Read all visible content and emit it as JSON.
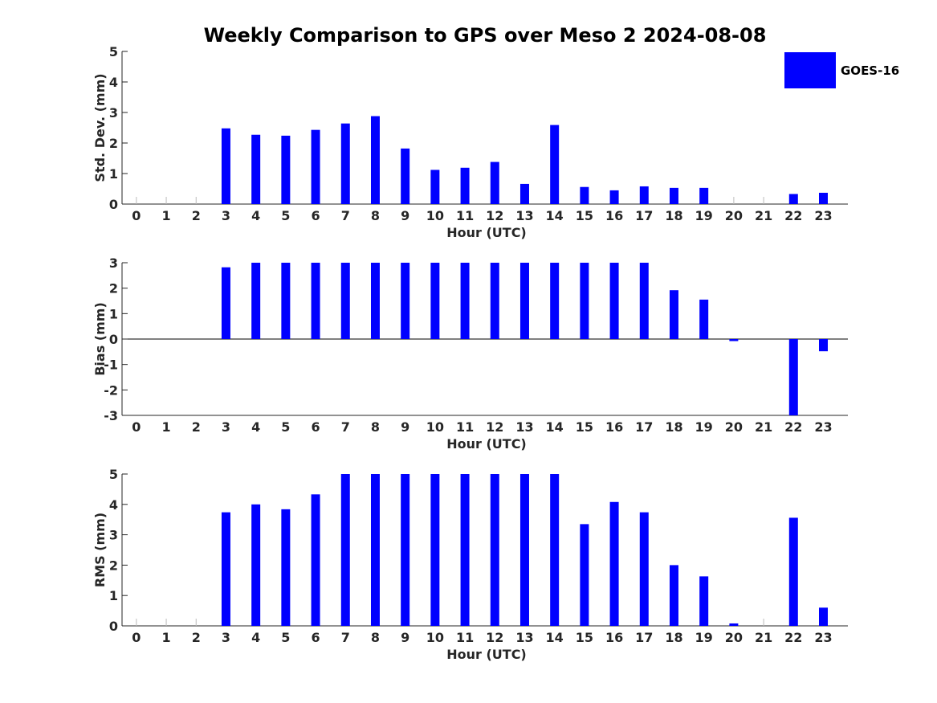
{
  "title": "Weekly Comparison to GPS over Meso 2 2024-08-08",
  "legend": {
    "label": "GOES-16",
    "color": "#0000ff",
    "placement": "top-right"
  },
  "chart_data": [
    {
      "type": "bar",
      "categories": [
        "0",
        "1",
        "2",
        "3",
        "4",
        "5",
        "6",
        "7",
        "8",
        "9",
        "10",
        "11",
        "12",
        "13",
        "14",
        "15",
        "16",
        "17",
        "18",
        "19",
        "20",
        "21",
        "22",
        "23"
      ],
      "series": [
        {
          "name": "GOES-16",
          "color": "#0000ff",
          "values": [
            null,
            null,
            null,
            2.48,
            2.27,
            2.24,
            2.43,
            2.64,
            2.88,
            1.82,
            1.12,
            1.19,
            1.38,
            0.66,
            2.59,
            0.56,
            0.45,
            0.58,
            0.53,
            0.53,
            null,
            null,
            0.33,
            0.37
          ]
        }
      ],
      "xlabel": "Hour (UTC)",
      "ylabel": "Std. Dev. (mm)",
      "ylim": [
        0,
        5
      ],
      "yticks": [
        "0",
        "1",
        "2",
        "3",
        "4",
        "5"
      ]
    },
    {
      "type": "bar",
      "categories": [
        "0",
        "1",
        "2",
        "3",
        "4",
        "5",
        "6",
        "7",
        "8",
        "9",
        "10",
        "11",
        "12",
        "13",
        "14",
        "15",
        "16",
        "17",
        "18",
        "19",
        "20",
        "21",
        "22",
        "23"
      ],
      "series": [
        {
          "name": "GOES-16",
          "color": "#0000ff",
          "values": [
            null,
            null,
            null,
            2.82,
            3.0,
            3.0,
            3.0,
            3.0,
            3.0,
            3.0,
            3.0,
            3.0,
            3.0,
            3.0,
            3.0,
            3.0,
            3.0,
            3.0,
            1.92,
            1.55,
            -0.08,
            null,
            -3.0,
            -0.48
          ]
        }
      ],
      "xlabel": "Hour (UTC)",
      "ylabel": "Bias (mm)",
      "ylim": [
        -3,
        3
      ],
      "yticks": [
        "-3",
        "-2",
        "-1",
        "0",
        "1",
        "2",
        "3"
      ]
    },
    {
      "type": "bar",
      "categories": [
        "0",
        "1",
        "2",
        "3",
        "4",
        "5",
        "6",
        "7",
        "8",
        "9",
        "10",
        "11",
        "12",
        "13",
        "14",
        "15",
        "16",
        "17",
        "18",
        "19",
        "20",
        "21",
        "22",
        "23"
      ],
      "series": [
        {
          "name": "GOES-16",
          "color": "#0000ff",
          "values": [
            null,
            null,
            null,
            3.74,
            4.0,
            3.84,
            4.33,
            5.0,
            5.0,
            5.0,
            5.0,
            5.0,
            5.0,
            5.0,
            5.0,
            3.35,
            4.08,
            3.74,
            2.0,
            1.63,
            0.08,
            null,
            3.56,
            0.6
          ]
        }
      ],
      "xlabel": "Hour (UTC)",
      "ylabel": "RMS (mm)",
      "ylim": [
        0,
        5
      ],
      "yticks": [
        "0",
        "1",
        "2",
        "3",
        "4",
        "5"
      ]
    }
  ]
}
